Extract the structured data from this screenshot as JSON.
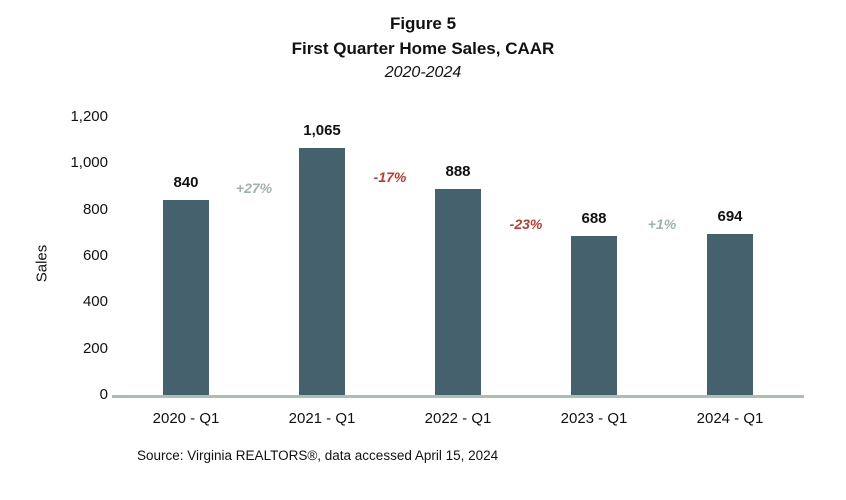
{
  "title": {
    "line1": "Figure 5",
    "line2": "First Quarter Home Sales, CAAR",
    "line3": "2020-2024"
  },
  "source": "Source: Virginia REALTORS®, data accessed April 15, 2024",
  "chart_data": {
    "type": "bar",
    "title": "Figure 5 — First Quarter Home Sales, CAAR, 2020-2024",
    "categories": [
      "2020 - Q1",
      "2021 - Q1",
      "2022 - Q1",
      "2023 - Q1",
      "2024 - Q1"
    ],
    "values": [
      840,
      1065,
      888,
      688,
      694
    ],
    "value_labels": [
      "840",
      "1,065",
      "888",
      "688",
      "694"
    ],
    "change_labels": [
      {
        "text": "+27%",
        "color": "#9fb5a8"
      },
      {
        "text": "-17%",
        "color": "#c13a2e"
      },
      {
        "text": "-23%",
        "color": "#c13a2e"
      },
      {
        "text": "+1%",
        "color": "#9fb5a8"
      }
    ],
    "xlabel": "",
    "ylabel": "Sales",
    "ylim": [
      0,
      1200
    ],
    "yticks": [
      0,
      200,
      400,
      600,
      800,
      1000,
      1200
    ],
    "ytick_labels": [
      "0",
      "200",
      "400",
      "600",
      "800",
      "1,000",
      "1,200"
    ],
    "bar_color": "#45616e",
    "axis_line_color": "#a7c0b2",
    "legend": "none",
    "grid": "off"
  }
}
